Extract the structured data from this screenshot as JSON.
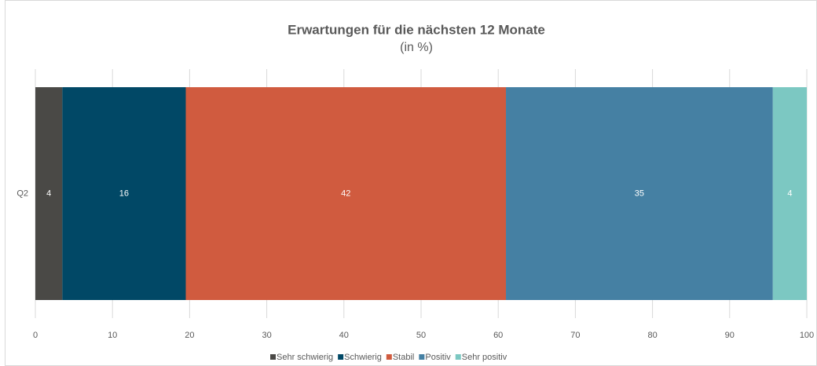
{
  "chart_data": {
    "type": "stacked-bar-horizontal",
    "title": "Erwartungen für die nächsten 12 Monate",
    "subtitle": "(in %)",
    "categories": [
      "Q2"
    ],
    "series": [
      {
        "name": "Sehr schwierig",
        "color": "#4a4946",
        "values": [
          3.5
        ],
        "value_labels": [
          "4"
        ]
      },
      {
        "name": "Schwierig",
        "color": "#014866",
        "values": [
          16
        ],
        "value_labels": [
          "16"
        ]
      },
      {
        "name": "Stabil",
        "color": "#d05b3f",
        "values": [
          41.5
        ],
        "value_labels": [
          "42"
        ]
      },
      {
        "name": "Positiv",
        "color": "#4580a3",
        "values": [
          34.6
        ],
        "value_labels": [
          "35"
        ]
      },
      {
        "name": "Sehr positiv",
        "color": "#7cc8c2",
        "values": [
          4.4
        ],
        "value_labels": [
          "4"
        ]
      }
    ],
    "xlim": [
      0,
      100
    ],
    "xticks": [
      0,
      10,
      20,
      30,
      40,
      50,
      60,
      70,
      80,
      90,
      100
    ],
    "grid": true,
    "legend": "bottom"
  }
}
